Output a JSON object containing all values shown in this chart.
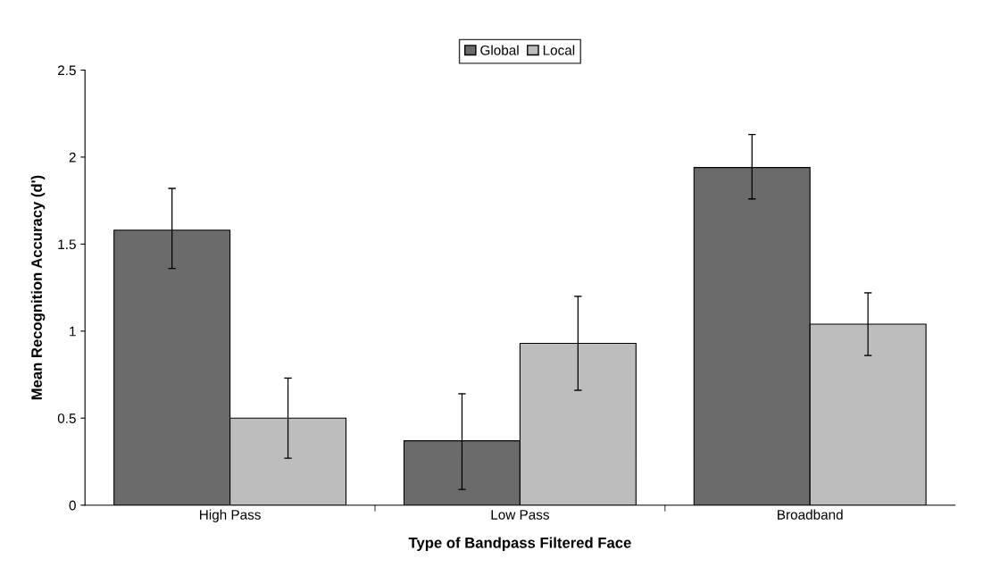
{
  "chart_data": {
    "type": "bar",
    "xlabel": "Type of Bandpass Filtered Face",
    "ylabel": "Mean Recognition Accuracy (d')",
    "categories": [
      "High Pass",
      "Low Pass",
      "Broadband"
    ],
    "series": [
      {
        "name": "Global",
        "color": "#6b6b6b",
        "values": [
          1.58,
          0.37,
          1.94
        ],
        "errors": [
          [
            1.36,
            1.82
          ],
          [
            0.09,
            0.64
          ],
          [
            1.76,
            2.13
          ]
        ]
      },
      {
        "name": "Local",
        "color": "#bdbdbd",
        "values": [
          0.5,
          0.93,
          1.04
        ],
        "errors": [
          [
            0.27,
            0.73
          ],
          [
            0.66,
            1.2
          ],
          [
            0.86,
            1.22
          ]
        ]
      }
    ],
    "ylim": [
      0,
      2.5
    ],
    "yticks": [
      0,
      0.5,
      1,
      1.5,
      2,
      2.5
    ],
    "grid": false,
    "legend": "top"
  }
}
